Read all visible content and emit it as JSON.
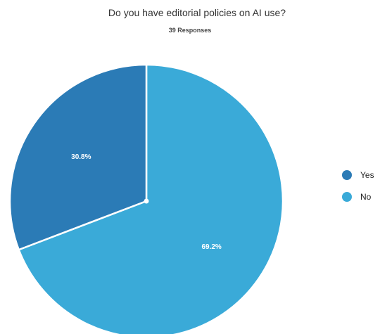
{
  "chart_data": {
    "type": "pie",
    "title": "Do you have editorial policies on AI use?",
    "subtitle": "39 Responses",
    "slices": [
      {
        "label": "Yes",
        "value": 30.8,
        "value_label": "30.8%",
        "color": "#2b7bb6"
      },
      {
        "label": "No",
        "value": 69.2,
        "value_label": "69.2%",
        "color": "#3aaad8"
      }
    ],
    "legend_position": "right"
  }
}
